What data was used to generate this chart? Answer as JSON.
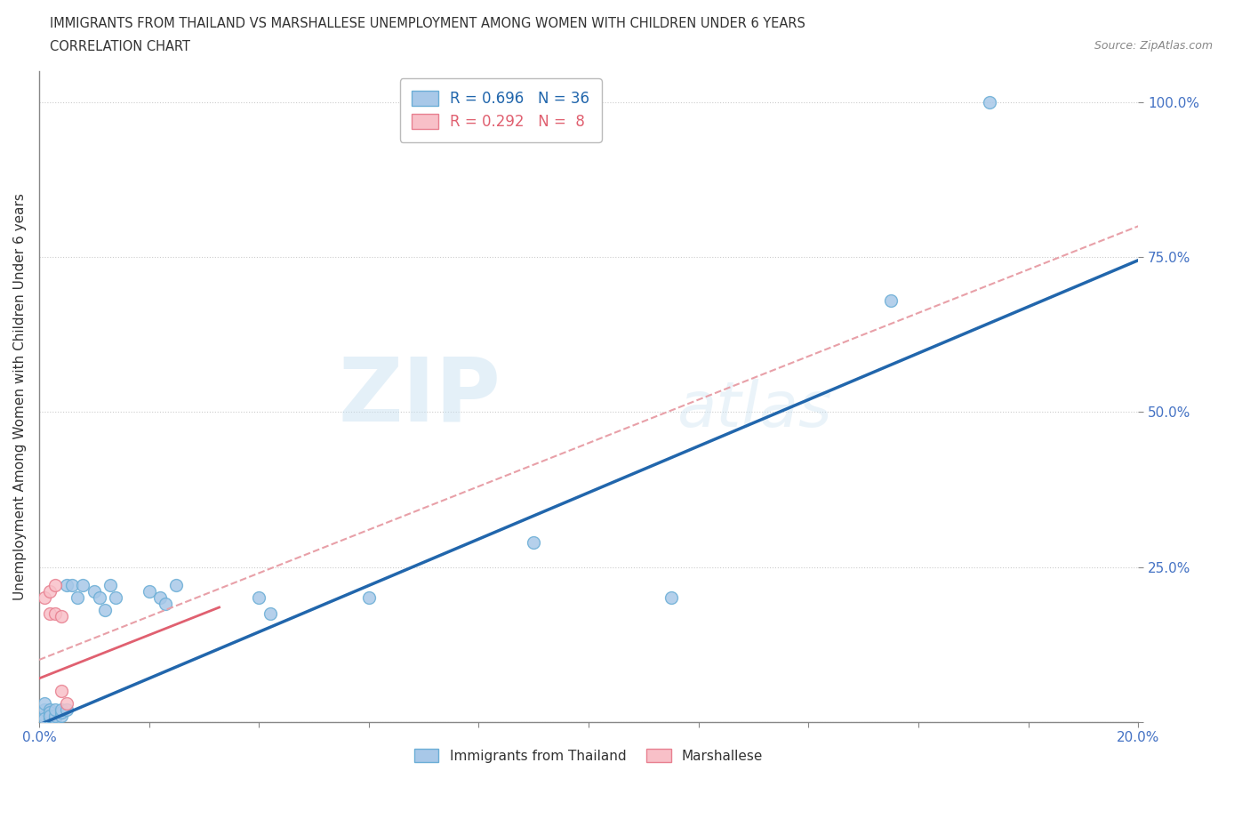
{
  "title_line1": "IMMIGRANTS FROM THAILAND VS MARSHALLESE UNEMPLOYMENT AMONG WOMEN WITH CHILDREN UNDER 6 YEARS",
  "title_line2": "CORRELATION CHART",
  "source": "Source: ZipAtlas.com",
  "ylabel": "Unemployment Among Women with Children Under 6 years",
  "xlim": [
    0.0,
    0.2
  ],
  "ylim": [
    0.0,
    1.05
  ],
  "watermark_zip": "ZIP",
  "watermark_atlas": "atlas",
  "blue_color": "#a8c8e8",
  "blue_edge_color": "#6baed6",
  "pink_color": "#f8c0c8",
  "pink_edge_color": "#e88090",
  "blue_line_color": "#2166ac",
  "pink_line_color": "#e06070",
  "conf_line_color": "#e8a0a8",
  "blue_scatter": [
    [
      0.001,
      0.01
    ],
    [
      0.001,
      0.02
    ],
    [
      0.001,
      0.005
    ],
    [
      0.001,
      0.03
    ],
    [
      0.002,
      0.005
    ],
    [
      0.002,
      0.01
    ],
    [
      0.002,
      0.02
    ],
    [
      0.002,
      0.015
    ],
    [
      0.002,
      0.01
    ],
    [
      0.003,
      0.005
    ],
    [
      0.003,
      0.01
    ],
    [
      0.003,
      0.02
    ],
    [
      0.004,
      0.01
    ],
    [
      0.004,
      0.015
    ],
    [
      0.004,
      0.02
    ],
    [
      0.005,
      0.02
    ],
    [
      0.005,
      0.22
    ],
    [
      0.006,
      0.22
    ],
    [
      0.007,
      0.2
    ],
    [
      0.008,
      0.22
    ],
    [
      0.01,
      0.21
    ],
    [
      0.011,
      0.2
    ],
    [
      0.012,
      0.18
    ],
    [
      0.013,
      0.22
    ],
    [
      0.014,
      0.2
    ],
    [
      0.02,
      0.21
    ],
    [
      0.022,
      0.2
    ],
    [
      0.023,
      0.19
    ],
    [
      0.025,
      0.22
    ],
    [
      0.04,
      0.2
    ],
    [
      0.042,
      0.175
    ],
    [
      0.06,
      0.2
    ],
    [
      0.09,
      0.29
    ],
    [
      0.115,
      0.2
    ],
    [
      0.155,
      0.68
    ],
    [
      0.173,
      1.0
    ]
  ],
  "pink_scatter": [
    [
      0.001,
      0.2
    ],
    [
      0.002,
      0.21
    ],
    [
      0.002,
      0.175
    ],
    [
      0.003,
      0.22
    ],
    [
      0.003,
      0.175
    ],
    [
      0.004,
      0.17
    ],
    [
      0.004,
      0.05
    ],
    [
      0.005,
      0.03
    ]
  ]
}
